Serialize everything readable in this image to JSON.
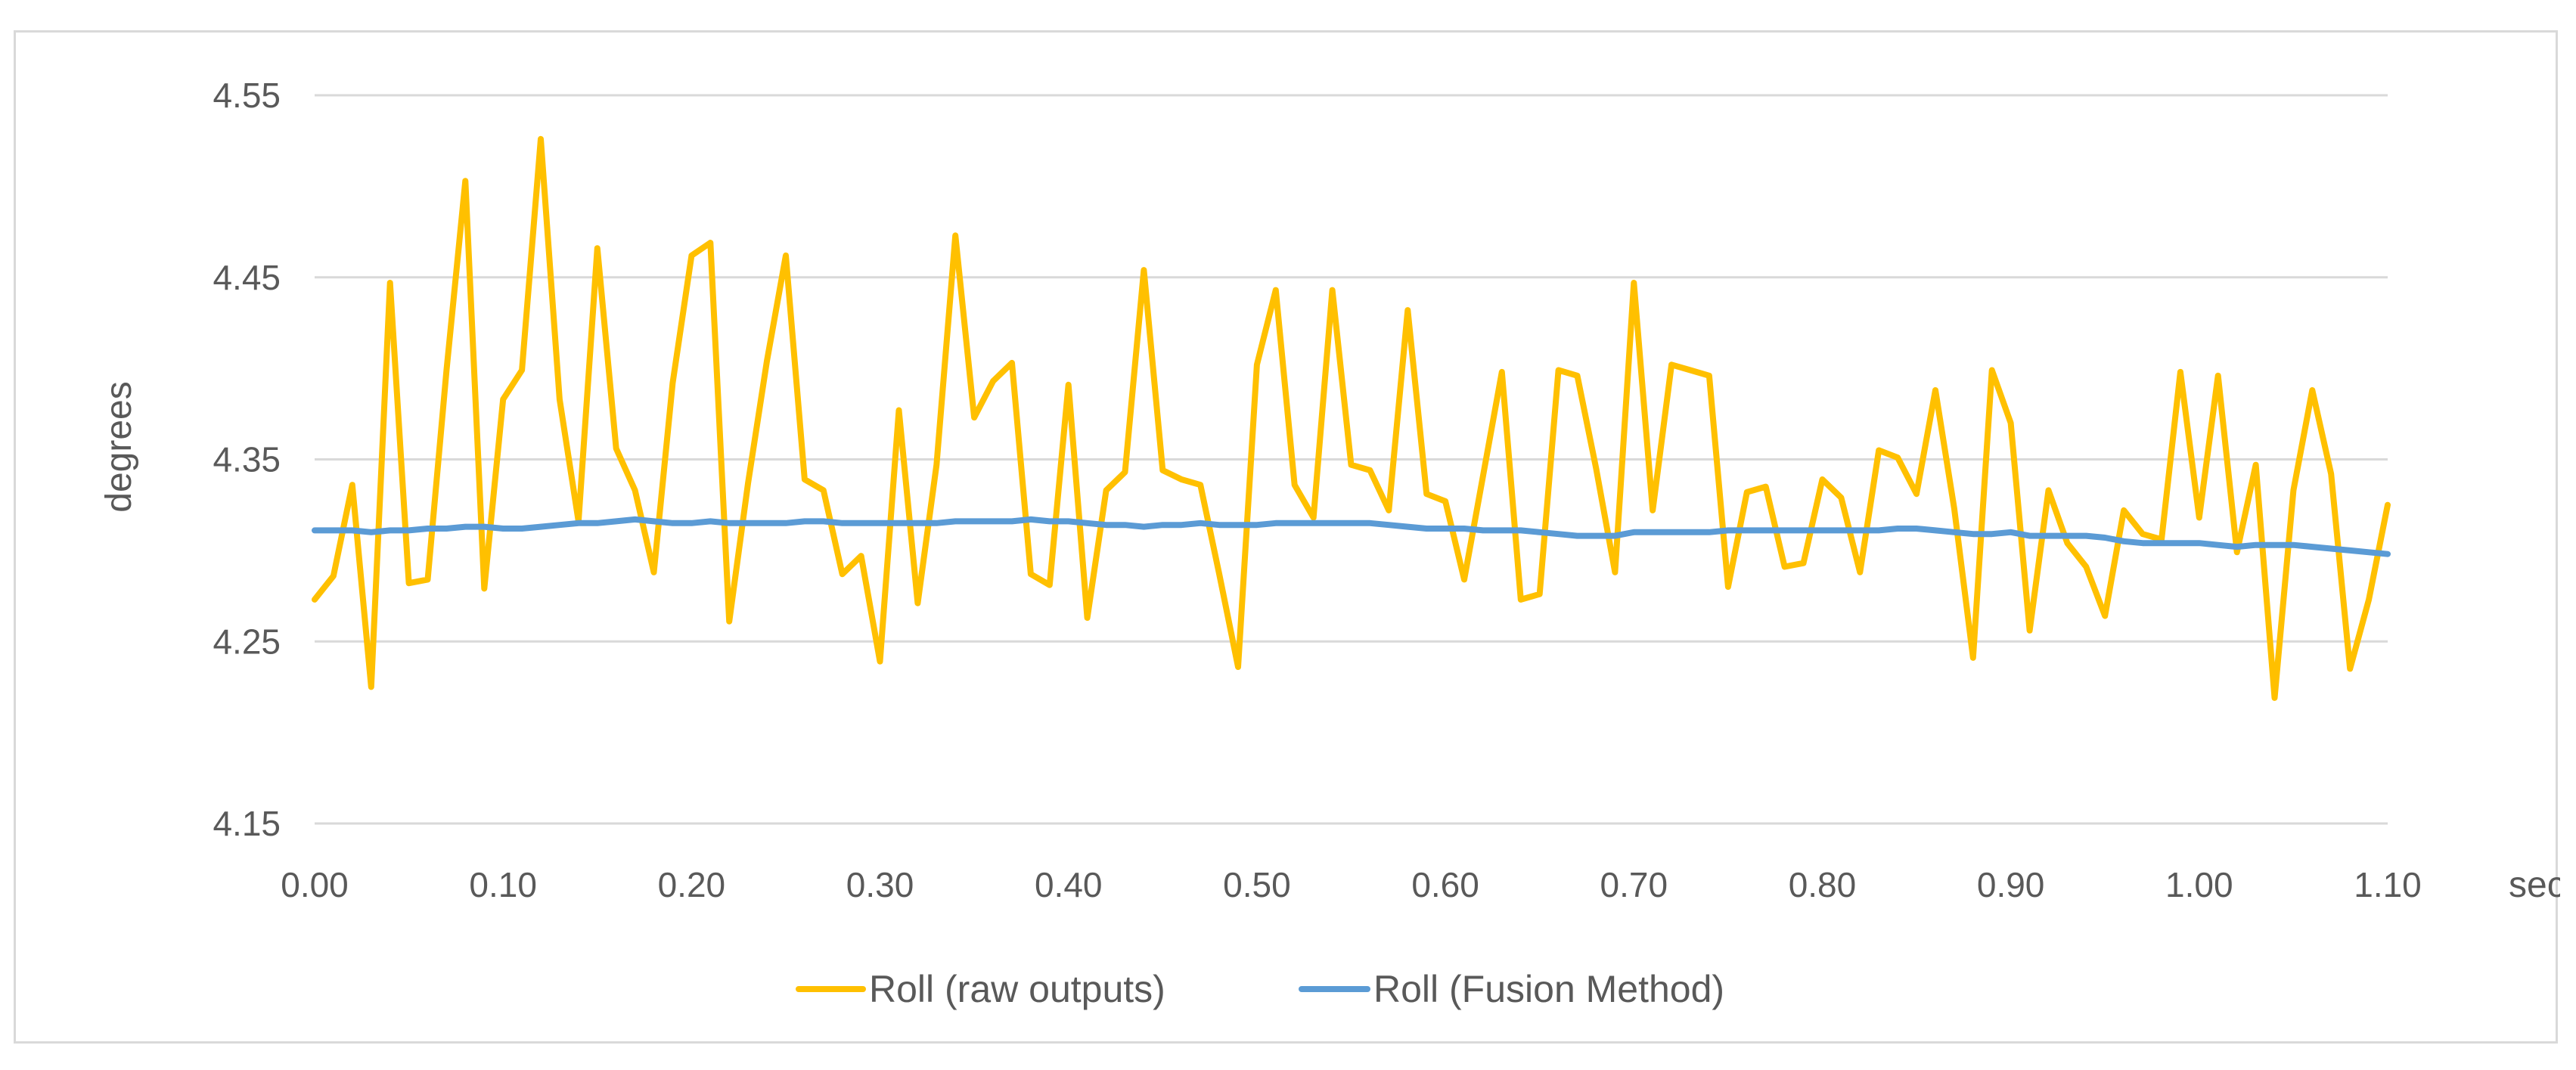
{
  "chart_data": {
    "type": "line",
    "title": "",
    "xlabel": "sec",
    "ylabel": "degrees",
    "ylim": [
      4.15,
      4.55
    ],
    "y_ticks": [
      "4.15",
      "4.25",
      "4.35",
      "4.45",
      "4.55"
    ],
    "x_ticks": [
      "0.00",
      "0.10",
      "0.20",
      "0.30",
      "0.40",
      "0.50",
      "0.60",
      "0.70",
      "0.80",
      "0.90",
      "1.00",
      "1.10"
    ],
    "xlim": [
      0,
      1.1
    ],
    "grid": "horizontal",
    "legend_position": "bottom",
    "x": [
      0.0,
      0.01,
      0.02,
      0.03,
      0.04,
      0.05,
      0.06,
      0.07,
      0.08,
      0.09,
      0.1,
      0.11,
      0.12,
      0.13,
      0.14,
      0.15,
      0.16,
      0.17,
      0.18,
      0.19,
      0.2,
      0.21,
      0.22,
      0.23,
      0.24,
      0.25,
      0.26,
      0.27,
      0.28,
      0.29,
      0.3,
      0.31,
      0.32,
      0.33,
      0.34,
      0.35,
      0.36,
      0.37,
      0.38,
      0.39,
      0.4,
      0.41,
      0.42,
      0.43,
      0.44,
      0.45,
      0.46,
      0.47,
      0.48,
      0.49,
      0.5,
      0.51,
      0.52,
      0.53,
      0.54,
      0.55,
      0.56,
      0.57,
      0.58,
      0.59,
      0.6,
      0.61,
      0.62,
      0.63,
      0.64,
      0.65,
      0.66,
      0.67,
      0.68,
      0.69,
      0.7,
      0.71,
      0.72,
      0.73,
      0.74,
      0.75,
      0.76,
      0.77,
      0.78,
      0.79,
      0.8,
      0.81,
      0.82,
      0.83,
      0.84,
      0.85,
      0.86,
      0.87,
      0.88,
      0.89,
      0.9,
      0.91,
      0.92,
      0.93,
      0.94,
      0.95,
      0.96,
      0.97,
      0.98,
      0.99,
      1.0,
      1.01,
      1.02,
      1.03,
      1.04,
      1.05,
      1.06,
      1.07,
      1.08,
      1.09,
      1.1
    ],
    "series": [
      {
        "name": "Roll (raw outputs)",
        "color": "#FFC000",
        "values": [
          4.273,
          4.286,
          4.336,
          4.225,
          4.447,
          4.282,
          4.284,
          4.399,
          4.503,
          4.279,
          4.383,
          4.399,
          4.526,
          4.383,
          4.316,
          4.466,
          4.356,
          4.333,
          4.288,
          4.392,
          4.462,
          4.469,
          4.261,
          4.337,
          4.404,
          4.462,
          4.339,
          4.333,
          4.287,
          4.297,
          4.239,
          4.377,
          4.271,
          4.347,
          4.473,
          4.373,
          4.393,
          4.403,
          4.287,
          4.281,
          4.391,
          4.263,
          4.333,
          4.343,
          4.454,
          4.344,
          4.339,
          4.336,
          4.287,
          4.236,
          4.402,
          4.443,
          4.336,
          4.318,
          4.443,
          4.347,
          4.344,
          4.322,
          4.432,
          4.331,
          4.327,
          4.284,
          4.341,
          4.398,
          4.273,
          4.276,
          4.399,
          4.396,
          4.345,
          4.288,
          4.447,
          4.322,
          4.402,
          4.399,
          4.396,
          4.28,
          4.332,
          4.335,
          4.291,
          4.293,
          4.339,
          4.329,
          4.288,
          4.355,
          4.351,
          4.331,
          4.388,
          4.323,
          4.241,
          4.399,
          4.37,
          4.256,
          4.333,
          4.304,
          4.291,
          4.264,
          4.322,
          4.309,
          4.306,
          4.398,
          4.318,
          4.396,
          4.299,
          4.347,
          4.219,
          4.333,
          4.388,
          4.342,
          4.235,
          4.273,
          4.325
        ]
      },
      {
        "name": "Roll (Fusion Method)",
        "color": "#5B9BD5",
        "values": [
          4.311,
          4.311,
          4.311,
          4.31,
          4.311,
          4.311,
          4.312,
          4.312,
          4.313,
          4.313,
          4.312,
          4.312,
          4.313,
          4.314,
          4.315,
          4.315,
          4.316,
          4.317,
          4.316,
          4.315,
          4.315,
          4.316,
          4.315,
          4.315,
          4.315,
          4.315,
          4.316,
          4.316,
          4.315,
          4.315,
          4.315,
          4.315,
          4.315,
          4.315,
          4.316,
          4.316,
          4.316,
          4.316,
          4.317,
          4.316,
          4.316,
          4.315,
          4.314,
          4.314,
          4.313,
          4.314,
          4.314,
          4.315,
          4.314,
          4.314,
          4.314,
          4.315,
          4.315,
          4.315,
          4.315,
          4.315,
          4.315,
          4.314,
          4.313,
          4.312,
          4.312,
          4.312,
          4.311,
          4.311,
          4.311,
          4.31,
          4.309,
          4.308,
          4.308,
          4.308,
          4.31,
          4.31,
          4.31,
          4.31,
          4.31,
          4.311,
          4.311,
          4.311,
          4.311,
          4.311,
          4.311,
          4.311,
          4.311,
          4.311,
          4.312,
          4.312,
          4.311,
          4.31,
          4.309,
          4.309,
          4.31,
          4.308,
          4.308,
          4.308,
          4.308,
          4.307,
          4.305,
          4.304,
          4.304,
          4.304,
          4.304,
          4.303,
          4.302,
          4.303,
          4.303,
          4.303,
          4.302,
          4.301,
          4.3,
          4.299,
          4.298
        ]
      }
    ]
  }
}
